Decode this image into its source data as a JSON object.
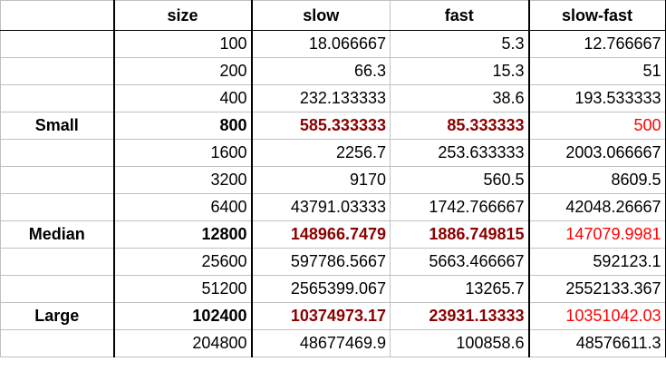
{
  "headers": [
    "",
    "size",
    "slow",
    "fast",
    "slow-fast"
  ],
  "rows": [
    {
      "group": "",
      "size": "100",
      "slow": "18.066667",
      "fast": "5.3",
      "diff": "12.766667",
      "highlight": false
    },
    {
      "group": "",
      "size": "200",
      "slow": "66.3",
      "fast": "15.3",
      "diff": "51",
      "highlight": false
    },
    {
      "group": "",
      "size": "400",
      "slow": "232.133333",
      "fast": "38.6",
      "diff": "193.533333",
      "highlight": false
    },
    {
      "group": "Small",
      "size": "800",
      "slow": "585.333333",
      "fast": "85.333333",
      "diff": "500",
      "highlight": true
    },
    {
      "group": "",
      "size": "1600",
      "slow": "2256.7",
      "fast": "253.633333",
      "diff": "2003.066667",
      "highlight": false
    },
    {
      "group": "",
      "size": "3200",
      "slow": "9170",
      "fast": "560.5",
      "diff": "8609.5",
      "highlight": false
    },
    {
      "group": "",
      "size": "6400",
      "slow": "43791.03333",
      "fast": "1742.766667",
      "diff": "42048.26667",
      "highlight": false
    },
    {
      "group": "Median",
      "size": "12800",
      "slow": "148966.7479",
      "fast": "1886.749815",
      "diff": "147079.9981",
      "highlight": true
    },
    {
      "group": "",
      "size": "25600",
      "slow": "597786.5667",
      "fast": "5663.466667",
      "diff": "592123.1",
      "highlight": false
    },
    {
      "group": "",
      "size": "51200",
      "slow": "2565399.067",
      "fast": "13265.7",
      "diff": "2552133.367",
      "highlight": false
    },
    {
      "group": "Large",
      "size": "102400",
      "slow": "10374973.17",
      "fast": "23931.13333",
      "diff": "10351042.03",
      "highlight": true
    },
    {
      "group": "",
      "size": "204800",
      "slow": "48677469.9",
      "fast": "100858.6",
      "diff": "48576611.3",
      "highlight": false
    }
  ],
  "colors": {
    "highlight_bold": "#8b0000",
    "highlight_diff": "#ff0000",
    "grid": "#c0c0c0"
  }
}
